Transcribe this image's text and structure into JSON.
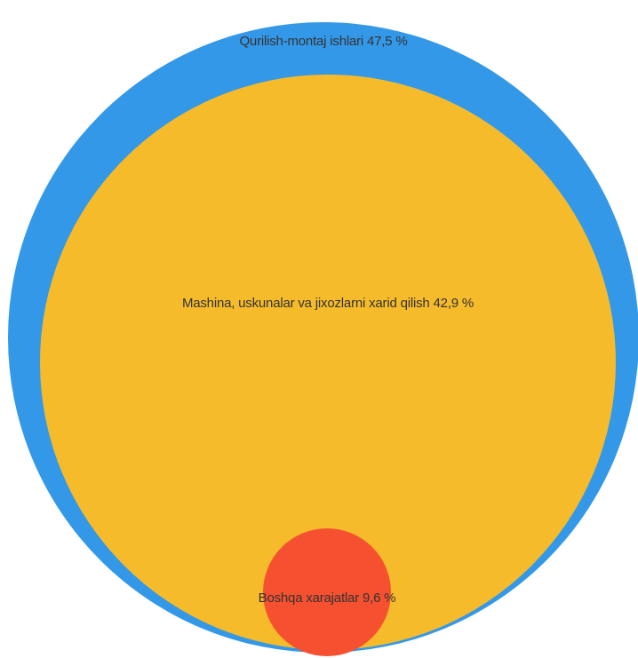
{
  "chart_data": {
    "type": "bubble",
    "legend": "none",
    "grid": false,
    "series": [
      {
        "name": "Qurilish-montaj ishlari",
        "value": 47.5,
        "value_label": "47,5 %",
        "color": "#3498e8"
      },
      {
        "name": "Mashina, uskunalar va jixozlarni xarid qilish",
        "value": 42.9,
        "value_label": "42,9 %",
        "color": "#f6bb2a"
      },
      {
        "name": "Boshqa xarajatlar",
        "value": 9.6,
        "value_label": "9,6 %",
        "color": "#f55130"
      }
    ]
  }
}
